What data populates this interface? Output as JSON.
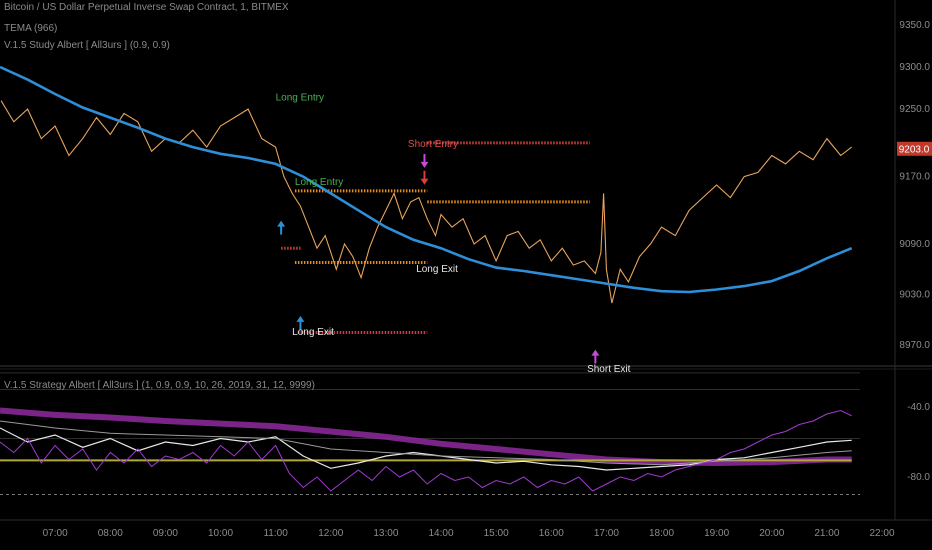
{
  "header": {
    "title": "Bitcoin / US Dollar Perpetual Inverse Swap Contract, 1, BITMEX",
    "indicator1": "TEMA (966)",
    "indicator2": "V.1.5 Study Albert [ All3urs ] (0.9, 0.9)"
  },
  "lower_pane": {
    "title": "V.1.5 Strategy Albert [ All3urs ] (1, 0.9, 0.9, 10, 26, 2019, 31, 12, 9999)"
  },
  "colors": {
    "background": "#000000",
    "price": "#e8a35c",
    "tema": "#2e8fd8",
    "short_level": "#d33b3b",
    "entry_level": "#e58a1f",
    "long_entry_text": "#4caf50",
    "short_entry_text": "#e05252",
    "exit_text": "#e6e6e6",
    "current_price_bg": "#c0392b",
    "purple": "#8e2a9e",
    "olive": "#b3a73a",
    "white_line": "#e8e8e8"
  },
  "chart_data": [
    {
      "type": "line",
      "time_labels": [
        "07:00",
        "08:00",
        "09:00",
        "10:00",
        "11:00",
        "12:00",
        "13:00",
        "14:00",
        "15:00",
        "16:00",
        "17:00",
        "18:00",
        "19:00",
        "20:00",
        "21:00",
        "22:00"
      ],
      "y_ticks": [
        "9350.0",
        "9300.0",
        "9250.0",
        "9170.0",
        "9090.0",
        "9030.0",
        "8970.0"
      ],
      "ylim": [
        8950,
        9370
      ],
      "current_price": "9203.0",
      "series": [
        {
          "key": "price",
          "x": [
            6.02,
            6.25,
            6.5,
            6.75,
            7.0,
            7.25,
            7.5,
            7.75,
            8.0,
            8.25,
            8.5,
            8.75,
            9.0,
            9.25,
            9.5,
            9.75,
            10.0,
            10.25,
            10.5,
            10.75,
            11.0,
            11.15,
            11.3,
            11.45,
            11.6,
            11.75,
            11.9,
            12.0,
            12.1,
            12.25,
            12.4,
            12.55,
            12.7,
            12.85,
            13.0,
            13.15,
            13.3,
            13.45,
            13.6,
            13.75,
            13.9,
            14.0,
            14.2,
            14.4,
            14.6,
            14.8,
            15.0,
            15.2,
            15.4,
            15.6,
            15.8,
            16.0,
            16.2,
            16.4,
            16.6,
            16.8,
            16.9,
            16.95,
            17.0,
            17.1,
            17.25,
            17.4,
            17.6,
            17.8,
            18.0,
            18.25,
            18.5,
            18.75,
            19.0,
            19.25,
            19.5,
            19.75,
            20.0,
            20.25,
            20.5,
            20.75,
            21.0,
            21.25,
            21.45
          ],
          "y": [
            9260,
            9235,
            9250,
            9215,
            9230,
            9195,
            9215,
            9240,
            9220,
            9245,
            9235,
            9200,
            9215,
            9210,
            9225,
            9205,
            9230,
            9240,
            9250,
            9215,
            9205,
            9170,
            9150,
            9135,
            9110,
            9085,
            9100,
            9080,
            9060,
            9090,
            9075,
            9050,
            9085,
            9110,
            9130,
            9150,
            9120,
            9140,
            9145,
            9120,
            9100,
            9125,
            9110,
            9120,
            9090,
            9100,
            9070,
            9100,
            9105,
            9085,
            9095,
            9070,
            9085,
            9065,
            9070,
            9055,
            9080,
            9150,
            9060,
            9020,
            9060,
            9045,
            9075,
            9090,
            9110,
            9100,
            9130,
            9145,
            9160,
            9145,
            9170,
            9175,
            9195,
            9185,
            9200,
            9190,
            9215,
            9195,
            9205
          ]
        },
        {
          "key": "tema",
          "x": [
            6.0,
            6.5,
            7.0,
            7.5,
            8.0,
            8.5,
            9.0,
            9.5,
            10.0,
            10.5,
            11.0,
            11.5,
            12.0,
            12.5,
            13.0,
            13.5,
            14.0,
            14.5,
            15.0,
            15.5,
            16.0,
            16.5,
            17.0,
            17.5,
            18.0,
            18.5,
            19.0,
            19.5,
            20.0,
            20.5,
            21.0,
            21.45
          ],
          "y": [
            9300,
            9285,
            9268,
            9252,
            9240,
            9228,
            9215,
            9205,
            9197,
            9192,
            9185,
            9170,
            9150,
            9130,
            9110,
            9095,
            9085,
            9072,
            9062,
            9058,
            9053,
            9048,
            9043,
            9038,
            9034,
            9033,
            9036,
            9040,
            9046,
            9058,
            9073,
            9085
          ]
        }
      ],
      "levels": [
        {
          "key": "short_entry_level",
          "x": [
            13.75,
            16.7
          ],
          "y": 9210
        },
        {
          "key": "short_upper_level",
          "x": [
            13.75,
            16.7
          ],
          "y": 9140
        },
        {
          "key": "long_upper_level",
          "x": [
            11.35,
            13.75
          ],
          "y": 9153
        },
        {
          "key": "long_lower_level",
          "x": [
            11.35,
            13.75
          ],
          "y": 9068
        },
        {
          "key": "long_stop_level",
          "x": [
            11.4,
            13.75
          ],
          "y": 8985
        },
        {
          "key": "red_small",
          "x": [
            11.1,
            11.45
          ],
          "y": 9085
        }
      ],
      "annotations": [
        {
          "label": "Long Entry",
          "x": 11.0,
          "y": 9260
        },
        {
          "label": "Short Entry",
          "x": 13.4,
          "y": 9205
        },
        {
          "label": "Long Entry",
          "x": 11.35,
          "y": 9160
        },
        {
          "label": "Long Exit",
          "x": 13.55,
          "y": 9057
        },
        {
          "label": "Long Exit",
          "x": 11.3,
          "y": 8982
        },
        {
          "label": "Short Exit",
          "x": 16.65,
          "y": 8938
        }
      ]
    },
    {
      "type": "line",
      "y_ticks": [
        "-40.0",
        "-80.0"
      ],
      "ylim": [
        -100,
        -20
      ],
      "series": [
        {
          "key": "purple_thick",
          "x": [
            6.0,
            7.0,
            8.0,
            9.0,
            10.0,
            11.0,
            12.0,
            13.0,
            14.0,
            15.0,
            16.0,
            17.0,
            18.0,
            19.0,
            20.0,
            21.0,
            21.45
          ],
          "y": [
            -42,
            -44.5,
            -46,
            -48,
            -49.5,
            -51,
            -54,
            -57,
            -61,
            -64,
            -67,
            -70,
            -71.5,
            -72,
            -71.5,
            -70,
            -70
          ]
        },
        {
          "key": "olive",
          "x": [
            6.0,
            21.45
          ],
          "y": [
            -70.5,
            -70.5
          ]
        },
        {
          "key": "white_line",
          "x": [
            6.0,
            6.5,
            7.0,
            7.5,
            8.0,
            8.5,
            9.0,
            9.5,
            10.0,
            10.5,
            11.0,
            11.5,
            12.0,
            12.5,
            13.0,
            13.5,
            14.0,
            14.5,
            15.0,
            15.5,
            16.0,
            16.5,
            17.0,
            17.5,
            18.0,
            18.5,
            19.0,
            19.5,
            20.0,
            20.5,
            21.0,
            21.45
          ],
          "y": [
            -52,
            -60,
            -56,
            -63,
            -58,
            -65,
            -60,
            -62,
            -58,
            -60,
            -57,
            -68,
            -75,
            -72,
            -68,
            -66,
            -68,
            -70,
            -72,
            -71,
            -73,
            -74,
            -76,
            -75,
            -74,
            -73,
            -70,
            -69,
            -66,
            -63,
            -60,
            -59
          ]
        },
        {
          "key": "white_faint",
          "x": [
            6.0,
            7.0,
            8.0,
            9.0,
            10.0,
            11.0,
            12.0,
            13.0,
            14.0,
            15.0,
            16.0,
            17.0,
            18.0,
            19.0,
            20.0,
            21.0,
            21.45
          ],
          "y": [
            -48,
            -52,
            -55,
            -56,
            -57,
            -58,
            -64,
            -66,
            -68,
            -69,
            -70,
            -72,
            -73,
            -71,
            -69,
            -66,
            -65
          ]
        },
        {
          "key": "purple_noisy",
          "x": [
            6.0,
            6.25,
            6.5,
            6.75,
            7.0,
            7.25,
            7.5,
            7.75,
            8.0,
            8.25,
            8.5,
            8.75,
            9.0,
            9.25,
            9.5,
            9.75,
            10.0,
            10.25,
            10.5,
            10.75,
            11.0,
            11.25,
            11.5,
            11.75,
            12.0,
            12.25,
            12.5,
            12.75,
            13.0,
            13.25,
            13.5,
            13.75,
            14.0,
            14.25,
            14.5,
            14.75,
            15.0,
            15.25,
            15.5,
            15.75,
            16.0,
            16.25,
            16.5,
            16.75,
            17.0,
            17.25,
            17.5,
            17.75,
            18.0,
            18.25,
            18.5,
            18.75,
            19.0,
            19.25,
            19.5,
            19.75,
            20.0,
            20.25,
            20.5,
            20.75,
            21.0,
            21.25,
            21.45
          ],
          "y": [
            -60,
            -66,
            -58,
            -72,
            -62,
            -70,
            -64,
            -76,
            -66,
            -72,
            -64,
            -74,
            -68,
            -70,
            -66,
            -72,
            -62,
            -68,
            -60,
            -70,
            -62,
            -78,
            -86,
            -80,
            -88,
            -82,
            -76,
            -82,
            -74,
            -80,
            -76,
            -84,
            -78,
            -82,
            -80,
            -86,
            -82,
            -84,
            -80,
            -86,
            -82,
            -84,
            -80,
            -88,
            -84,
            -80,
            -82,
            -78,
            -80,
            -76,
            -74,
            -72,
            -70,
            -66,
            -64,
            -60,
            -56,
            -54,
            -50,
            -48,
            -44,
            -42,
            -45
          ]
        }
      ],
      "hlines": [
        -20.5,
        -30,
        -58,
        -90
      ]
    }
  ]
}
